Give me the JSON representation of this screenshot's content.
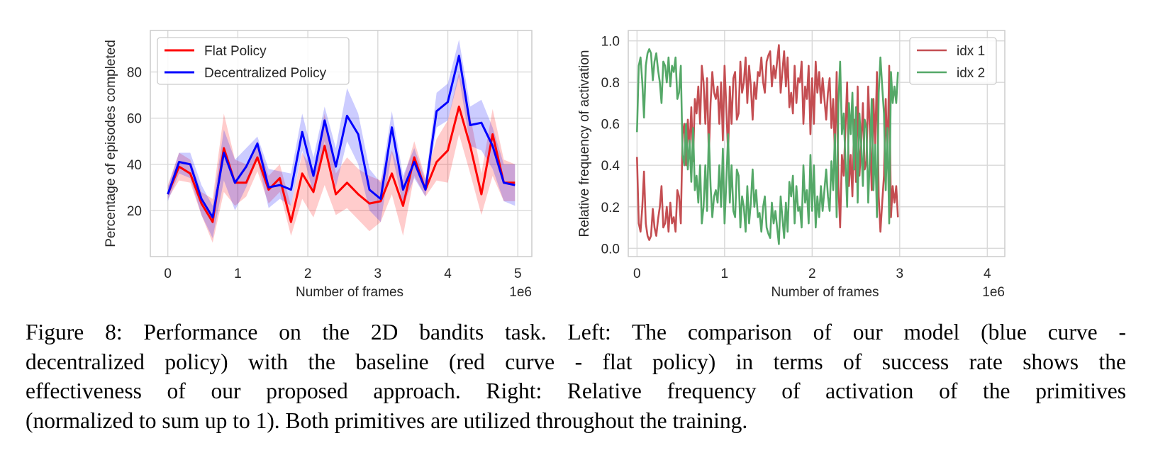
{
  "caption": {
    "lines": [
      "Figure 8: Performance on the 2D bandits task. Left: The comparison of our model (blue curve -",
      "decentralized policy) with the baseline (red curve - flat policy) in terms of success rate shows the",
      "effectiveness of our proposed approach. Right: Relative frequency of activation of the primitives",
      "(normalized to sum up to 1). Both primitives are utilized throughout the training."
    ]
  },
  "chart_data": [
    {
      "type": "line",
      "title": "",
      "xlabel": "Number of frames",
      "ylabel": "Percentage of episodes completed",
      "x_offset_label": "1e6",
      "xlim": [
        -0.25,
        5.2
      ],
      "ylim": [
        0,
        98
      ],
      "xticks": [
        0,
        1,
        2,
        3,
        4,
        5
      ],
      "xtick_labels": [
        "0",
        "1",
        "2",
        "3",
        "4",
        "5"
      ],
      "yticks": [
        20,
        40,
        60,
        80
      ],
      "ytick_labels": [
        "20",
        "40",
        "60",
        "80"
      ],
      "grid": true,
      "legend": {
        "position": "top-left",
        "entries": [
          "Flat Policy",
          "Decentralized Policy"
        ]
      },
      "x": [
        0,
        0.16,
        0.32,
        0.48,
        0.64,
        0.8,
        0.96,
        1.12,
        1.28,
        1.44,
        1.6,
        1.76,
        1.92,
        2.08,
        2.24,
        2.4,
        2.56,
        2.72,
        2.88,
        3.04,
        3.2,
        3.36,
        3.52,
        3.68,
        3.84,
        4.0,
        4.16,
        4.32,
        4.48,
        4.64,
        4.8,
        4.96
      ],
      "series": [
        {
          "name": "Flat Policy",
          "color": "#ff0000",
          "values": [
            27,
            39,
            36,
            23,
            15,
            47,
            32,
            32,
            43,
            29,
            34,
            15,
            36,
            28,
            48,
            27,
            32,
            27,
            23,
            24,
            36,
            22,
            43,
            29,
            41,
            46,
            65,
            48,
            27,
            53,
            32,
            32
          ],
          "band_low": [
            25,
            33,
            32,
            18,
            6,
            28,
            22,
            26,
            37,
            23,
            28,
            9,
            25,
            17,
            31,
            18,
            21,
            16,
            11,
            15,
            27,
            9,
            35,
            26,
            33,
            32,
            53,
            36,
            18,
            35,
            24,
            24
          ],
          "band_high": [
            31,
            45,
            42,
            28,
            25,
            62,
            42,
            40,
            50,
            35,
            40,
            22,
            45,
            37,
            62,
            36,
            43,
            38,
            35,
            33,
            46,
            33,
            50,
            34,
            51,
            59,
            80,
            61,
            36,
            64,
            42,
            40
          ]
        },
        {
          "name": "Decentralized Policy",
          "color": "#0000ff",
          "values": [
            27,
            41,
            40,
            25,
            17,
            45,
            32,
            39,
            49,
            30,
            31,
            29,
            54,
            35,
            59,
            39,
            61,
            53,
            29,
            25,
            56,
            29,
            41,
            29,
            63,
            67,
            87,
            57,
            58,
            48,
            32,
            31
          ],
          "band_low": [
            24,
            36,
            34,
            18,
            8,
            33,
            20,
            30,
            42,
            21,
            25,
            22,
            46,
            27,
            50,
            30,
            50,
            40,
            20,
            15,
            45,
            22,
            34,
            26,
            56,
            59,
            78,
            48,
            46,
            38,
            24,
            22
          ],
          "band_high": [
            30,
            45,
            45,
            31,
            22,
            55,
            42,
            47,
            52,
            38,
            37,
            36,
            62,
            43,
            65,
            47,
            73,
            62,
            38,
            32,
            63,
            35,
            47,
            33,
            71,
            75,
            94,
            65,
            68,
            56,
            40,
            40
          ]
        }
      ]
    },
    {
      "type": "line",
      "title": "",
      "xlabel": "Number of frames",
      "ylabel": "Relative frequency of activation",
      "x_offset_label": "1e6",
      "xlim": [
        -0.1,
        4.2
      ],
      "ylim": [
        -0.04,
        1.05
      ],
      "xticks": [
        0,
        1,
        2,
        3,
        4
      ],
      "xtick_labels": [
        "0",
        "1",
        "2",
        "3",
        "4"
      ],
      "yticks": [
        0.0,
        0.2,
        0.4,
        0.6,
        0.8,
        1.0
      ],
      "ytick_labels": [
        "0.0",
        "0.2",
        "0.4",
        "0.6",
        "0.8",
        "1.0"
      ],
      "grid": true,
      "legend": {
        "position": "top-right",
        "entries": [
          "idx 1",
          "idx 2"
        ]
      },
      "x_start": 0,
      "x_step": 0.02,
      "series": [
        {
          "name": "idx 1",
          "color": "#c44e52",
          "values": [
            0.44,
            0.12,
            0.08,
            0.2,
            0.37,
            0.12,
            0.06,
            0.04,
            0.06,
            0.19,
            0.1,
            0.06,
            0.14,
            0.2,
            0.3,
            0.1,
            0.12,
            0.2,
            0.08,
            0.22,
            0.12,
            0.15,
            0.08,
            0.28,
            0.25,
            0.12,
            0.55,
            0.6,
            0.4,
            0.62,
            0.48,
            0.68,
            0.42,
            0.72,
            0.65,
            0.78,
            0.6,
            0.88,
            0.8,
            0.6,
            0.82,
            0.45,
            0.7,
            0.85,
            0.75,
            0.72,
            0.78,
            0.6,
            0.8,
            0.52,
            0.88,
            0.68,
            0.45,
            0.78,
            0.6,
            0.82,
            0.85,
            0.62,
            0.65,
            0.9,
            0.75,
            0.8,
            0.92,
            0.7,
            0.88,
            0.78,
            0.62,
            0.8,
            0.72,
            0.85,
            0.83,
            0.92,
            0.8,
            0.75,
            0.9,
            0.93,
            0.95,
            0.78,
            0.88,
            0.82,
            0.9,
            0.98,
            0.75,
            0.85,
            0.95,
            0.78,
            0.92,
            0.68,
            0.75,
            0.65,
            0.88,
            0.7,
            0.82,
            0.8,
            0.9,
            0.6,
            0.78,
            0.72,
            0.88,
            0.55,
            0.82,
            0.6,
            0.9,
            0.75,
            0.85,
            0.7,
            0.82,
            0.72,
            0.62,
            0.75,
            0.82,
            0.58,
            0.72,
            0.45,
            0.85,
            0.3,
            0.1,
            0.45,
            0.35,
            0.58,
            0.8,
            0.3,
            0.45,
            0.25,
            0.62,
            0.32,
            0.78,
            0.35,
            0.5,
            0.7,
            0.38,
            0.42,
            0.78,
            0.55,
            0.28,
            0.72,
            0.5,
            0.85,
            0.25,
            0.08,
            0.22,
            0.35,
            0.72,
            0.42,
            0.88,
            0.15,
            0.3,
            0.22,
            0.3,
            0.15
          ]
        },
        {
          "name": "idx 2",
          "color": "#55a868",
          "values": [
            0.56,
            0.88,
            0.92,
            0.8,
            0.63,
            0.88,
            0.94,
            0.96,
            0.94,
            0.81,
            0.9,
            0.94,
            0.86,
            0.8,
            0.7,
            0.9,
            0.88,
            0.8,
            0.92,
            0.78,
            0.88,
            0.85,
            0.92,
            0.72,
            0.75,
            0.88,
            0.45,
            0.4,
            0.6,
            0.38,
            0.52,
            0.32,
            0.58,
            0.28,
            0.35,
            0.22,
            0.4,
            0.12,
            0.2,
            0.4,
            0.18,
            0.55,
            0.3,
            0.15,
            0.25,
            0.28,
            0.22,
            0.4,
            0.2,
            0.48,
            0.12,
            0.32,
            0.55,
            0.22,
            0.4,
            0.18,
            0.15,
            0.38,
            0.35,
            0.1,
            0.25,
            0.2,
            0.08,
            0.3,
            0.12,
            0.22,
            0.38,
            0.2,
            0.28,
            0.15,
            0.17,
            0.08,
            0.2,
            0.25,
            0.1,
            0.07,
            0.05,
            0.22,
            0.12,
            0.18,
            0.1,
            0.02,
            0.25,
            0.15,
            0.05,
            0.22,
            0.08,
            0.32,
            0.25,
            0.35,
            0.12,
            0.3,
            0.18,
            0.2,
            0.1,
            0.4,
            0.22,
            0.28,
            0.12,
            0.45,
            0.18,
            0.4,
            0.1,
            0.25,
            0.15,
            0.3,
            0.18,
            0.28,
            0.38,
            0.25,
            0.18,
            0.42,
            0.28,
            0.55,
            0.15,
            0.7,
            0.9,
            0.55,
            0.65,
            0.42,
            0.2,
            0.7,
            0.55,
            0.75,
            0.38,
            0.68,
            0.22,
            0.65,
            0.5,
            0.3,
            0.62,
            0.58,
            0.22,
            0.45,
            0.72,
            0.28,
            0.5,
            0.15,
            0.75,
            0.92,
            0.78,
            0.65,
            0.28,
            0.58,
            0.12,
            0.85,
            0.7,
            0.78,
            0.7,
            0.85
          ]
        }
      ]
    }
  ]
}
